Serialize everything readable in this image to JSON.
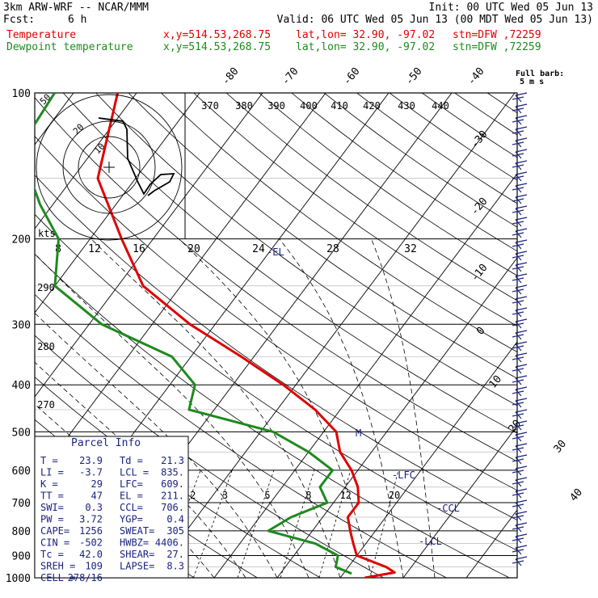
{
  "header": {
    "line1_left": "3km ARW-WRF -- NCAR/MMM",
    "line1_right": "Init: 00 UTC Wed 05 Jun 13",
    "fcst_label": "Fcst:",
    "fcst_value": "6 h",
    "valid": "Valid: 06 UTC Wed 05 Jun 13 (00 MDT Wed 05 Jun 13)",
    "temp_label": "Temperature",
    "dew_label": "Dewpoint temperature",
    "xy": "x,y=514.53,268.75",
    "latlon": "lat,lon= 32.90, -97.02",
    "stn": "stn=DFW ,72259"
  },
  "barb_legend": {
    "line1": "Full barb:",
    "line2": "5 m s"
  },
  "colors": {
    "temperature": "#e00000",
    "dewpoint": "#1e8a1e",
    "wind": "#1a237e",
    "grid": "#000000"
  },
  "chart_data": {
    "type": "line",
    "pressure_ticks": [
      "100",
      "200",
      "300",
      "400",
      "500",
      "600",
      "700",
      "800",
      "900",
      "1000"
    ],
    "pressure_values": [
      100,
      200,
      300,
      400,
      500,
      600,
      700,
      800,
      900,
      1000
    ],
    "isotherm_labels": [
      "-80",
      "-70",
      "-60",
      "-50",
      "-40",
      "-30",
      "-20",
      "-10",
      "0",
      "10",
      "20",
      "30",
      "40"
    ],
    "theta_labels": [
      "370",
      "380",
      "390",
      "400",
      "410",
      "420",
      "430",
      "440",
      "290",
      "280",
      "270"
    ],
    "mixing_ratio_labels": [
      "2",
      "3",
      "5",
      "8",
      "12",
      "20"
    ],
    "hodograph": {
      "kts_label": "kts",
      "speed_labels": [
        "50",
        "20",
        "10"
      ],
      "x_labels": [
        "8",
        "12",
        "16",
        "20",
        "24",
        "28",
        "32"
      ]
    },
    "series": [
      {
        "name": "Temperature",
        "points": [
          [
            100,
            -73
          ],
          [
            150,
            -66
          ],
          [
            200,
            -55
          ],
          [
            250,
            -46
          ],
          [
            300,
            -34
          ],
          [
            350,
            -22
          ],
          [
            400,
            -12
          ],
          [
            450,
            -4
          ],
          [
            500,
            2
          ],
          [
            550,
            5
          ],
          [
            600,
            9
          ],
          [
            650,
            12
          ],
          [
            700,
            14
          ],
          [
            750,
            14
          ],
          [
            800,
            16
          ],
          [
            850,
            18
          ],
          [
            900,
            20
          ],
          [
            950,
            26
          ],
          [
            975,
            28
          ],
          [
            1000,
            23.9
          ]
        ]
      },
      {
        "name": "Dewpoint temperature",
        "points": [
          [
            100,
            -83
          ],
          [
            130,
            -82
          ],
          [
            170,
            -72
          ],
          [
            200,
            -65
          ],
          [
            250,
            -60
          ],
          [
            300,
            -48
          ],
          [
            350,
            -33
          ],
          [
            400,
            -26
          ],
          [
            450,
            -24
          ],
          [
            500,
            -8
          ],
          [
            550,
            0
          ],
          [
            600,
            6
          ],
          [
            650,
            6
          ],
          [
            700,
            9
          ],
          [
            750,
            5
          ],
          [
            800,
            3
          ],
          [
            850,
            12
          ],
          [
            900,
            17
          ],
          [
            950,
            18
          ],
          [
            980,
            21.3
          ]
        ]
      }
    ],
    "annotations": [
      "-EL",
      "-LFC",
      "-CCL",
      "-LCL",
      "M"
    ]
  },
  "parcel": {
    "title": "Parcel Info",
    "rows": [
      [
        "T  =",
        "23.9",
        "Td =",
        "21.3"
      ],
      [
        "LI =",
        "-3.7",
        "LCL =",
        "835."
      ],
      [
        "K  =",
        "29",
        "LFC=",
        "609."
      ],
      [
        "TT =",
        "47",
        "EL =",
        "211."
      ],
      [
        "SWI=",
        "0.3",
        "CCL=",
        "706."
      ],
      [
        "PW =",
        "3.72",
        "YGP=",
        "0.4"
      ],
      [
        "CAPE=",
        "1256",
        "SWEAT=",
        "305"
      ],
      [
        "CIN =",
        "-502",
        "HWBZ=",
        "4406."
      ],
      [
        "Tc =",
        "42.0",
        "SHEAR=",
        "27."
      ],
      [
        "SREH =",
        "109",
        "LAPSE=",
        "8.3"
      ],
      [
        "CELL =",
        "278/16",
        "",
        ""
      ]
    ]
  }
}
